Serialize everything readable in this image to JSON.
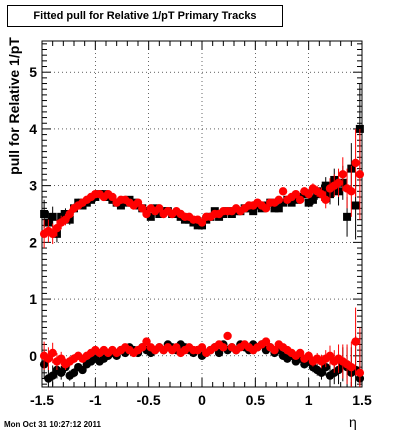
{
  "chart_data": {
    "type": "scatter",
    "title": "Fitted pull for Relative 1/pT  Primary Tracks",
    "ylabel": "pull for Relative 1/pT",
    "xlabel": "η",
    "xlim": [
      -1.5,
      1.5
    ],
    "ylim": [
      -0.55,
      5.55
    ],
    "x_ticks": [
      "-1.5",
      "-1",
      "-0.5",
      "0",
      "0.5",
      "1",
      "1.5"
    ],
    "y_ticks": [
      "0",
      "1",
      "2",
      "3",
      "4",
      "5"
    ],
    "x_tick_values": [
      -1.5,
      -1,
      -0.5,
      0,
      0.5,
      1,
      1.5
    ],
    "y_tick_values": [
      0,
      1,
      2,
      3,
      4,
      5
    ],
    "grid": true,
    "footer": "Mon Oct 31 10:27:12 2011",
    "series": [
      {
        "marker": "square",
        "color": "#000000",
        "x": [
          -1.48,
          -1.44,
          -1.4,
          -1.36,
          -1.32,
          -1.28,
          -1.24,
          -1.2,
          -1.16,
          -1.12,
          -1.08,
          -1.04,
          -1.0,
          -0.96,
          -0.92,
          -0.88,
          -0.84,
          -0.8,
          -0.76,
          -0.72,
          -0.68,
          -0.64,
          -0.6,
          -0.56,
          -0.52,
          -0.48,
          -0.44,
          -0.4,
          -0.36,
          -0.32,
          -0.28,
          -0.24,
          -0.2,
          -0.16,
          -0.12,
          -0.08,
          -0.04,
          0.0,
          0.04,
          0.08,
          0.12,
          0.16,
          0.2,
          0.24,
          0.28,
          0.32,
          0.36,
          0.4,
          0.44,
          0.48,
          0.52,
          0.56,
          0.6,
          0.64,
          0.68,
          0.72,
          0.76,
          0.8,
          0.84,
          0.88,
          0.92,
          0.96,
          1.0,
          1.04,
          1.08,
          1.12,
          1.16,
          1.2,
          1.24,
          1.28,
          1.32,
          1.36,
          1.4,
          1.44,
          1.48
        ],
        "y": [
          2.5,
          2.35,
          2.45,
          2.15,
          2.45,
          2.5,
          2.4,
          2.6,
          2.7,
          2.65,
          2.7,
          2.75,
          2.8,
          2.85,
          2.85,
          2.8,
          2.75,
          2.7,
          2.65,
          2.7,
          2.75,
          2.7,
          2.65,
          2.6,
          2.55,
          2.45,
          2.6,
          2.5,
          2.55,
          2.55,
          2.5,
          2.5,
          2.45,
          2.4,
          2.4,
          2.35,
          2.3,
          2.3,
          2.4,
          2.45,
          2.55,
          2.45,
          2.5,
          2.55,
          2.5,
          2.55,
          2.55,
          2.6,
          2.6,
          2.55,
          2.65,
          2.6,
          2.65,
          2.7,
          2.6,
          2.6,
          2.7,
          2.75,
          2.7,
          2.75,
          2.8,
          2.85,
          2.7,
          2.75,
          2.85,
          2.9,
          3.0,
          2.85,
          3.1,
          2.9,
          3.05,
          2.45,
          3.3,
          2.65,
          4.0
        ],
        "err": [
          0.25,
          0.2,
          0.18,
          0.15,
          0.12,
          0.1,
          0.09,
          0.08,
          0.07,
          0.07,
          0.06,
          0.06,
          0.06,
          0.05,
          0.05,
          0.05,
          0.05,
          0.05,
          0.05,
          0.05,
          0.05,
          0.05,
          0.05,
          0.05,
          0.05,
          0.05,
          0.05,
          0.05,
          0.05,
          0.05,
          0.05,
          0.05,
          0.05,
          0.05,
          0.05,
          0.05,
          0.05,
          0.05,
          0.05,
          0.05,
          0.05,
          0.05,
          0.05,
          0.05,
          0.05,
          0.05,
          0.05,
          0.05,
          0.05,
          0.05,
          0.05,
          0.05,
          0.05,
          0.05,
          0.05,
          0.05,
          0.06,
          0.06,
          0.06,
          0.06,
          0.07,
          0.07,
          0.08,
          0.09,
          0.1,
          0.12,
          0.15,
          0.18,
          0.2,
          0.25,
          0.3,
          0.35,
          0.45,
          0.6,
          0.8
        ]
      },
      {
        "marker": "circle",
        "color": "#ff0000",
        "x": [
          -1.48,
          -1.44,
          -1.4,
          -1.36,
          -1.32,
          -1.28,
          -1.24,
          -1.2,
          -1.16,
          -1.12,
          -1.08,
          -1.04,
          -1.0,
          -0.96,
          -0.92,
          -0.88,
          -0.84,
          -0.8,
          -0.76,
          -0.72,
          -0.68,
          -0.64,
          -0.6,
          -0.56,
          -0.52,
          -0.48,
          -0.44,
          -0.4,
          -0.36,
          -0.32,
          -0.28,
          -0.24,
          -0.2,
          -0.16,
          -0.12,
          -0.08,
          -0.04,
          0.0,
          0.04,
          0.08,
          0.12,
          0.16,
          0.2,
          0.24,
          0.28,
          0.32,
          0.36,
          0.4,
          0.44,
          0.48,
          0.52,
          0.56,
          0.6,
          0.64,
          0.68,
          0.72,
          0.76,
          0.8,
          0.84,
          0.88,
          0.92,
          0.96,
          1.0,
          1.04,
          1.08,
          1.12,
          1.16,
          1.2,
          1.24,
          1.28,
          1.32,
          1.36,
          1.4,
          1.44,
          1.48
        ],
        "y": [
          2.15,
          2.2,
          2.15,
          2.25,
          2.35,
          2.4,
          2.5,
          2.6,
          2.65,
          2.7,
          2.75,
          2.8,
          2.85,
          2.85,
          2.8,
          2.85,
          2.8,
          2.7,
          2.75,
          2.75,
          2.7,
          2.65,
          2.7,
          2.6,
          2.5,
          2.6,
          2.55,
          2.6,
          2.5,
          2.55,
          2.5,
          2.55,
          2.5,
          2.45,
          2.45,
          2.4,
          2.4,
          2.35,
          2.45,
          2.45,
          2.5,
          2.5,
          2.55,
          2.55,
          2.55,
          2.6,
          2.55,
          2.6,
          2.65,
          2.65,
          2.7,
          2.65,
          2.6,
          2.7,
          2.7,
          2.75,
          2.9,
          2.75,
          2.8,
          2.85,
          2.75,
          2.9,
          2.85,
          2.95,
          2.9,
          2.85,
          2.75,
          2.95,
          3.0,
          3.05,
          3.2,
          2.95,
          2.9,
          3.4,
          3.2
        ],
        "err": [
          0.25,
          0.2,
          0.18,
          0.15,
          0.12,
          0.1,
          0.09,
          0.08,
          0.07,
          0.07,
          0.06,
          0.06,
          0.06,
          0.05,
          0.05,
          0.05,
          0.05,
          0.05,
          0.05,
          0.05,
          0.05,
          0.05,
          0.05,
          0.05,
          0.05,
          0.05,
          0.05,
          0.05,
          0.05,
          0.05,
          0.05,
          0.05,
          0.05,
          0.05,
          0.05,
          0.05,
          0.05,
          0.05,
          0.05,
          0.05,
          0.05,
          0.05,
          0.05,
          0.05,
          0.05,
          0.05,
          0.05,
          0.05,
          0.05,
          0.05,
          0.05,
          0.05,
          0.05,
          0.05,
          0.05,
          0.05,
          0.06,
          0.06,
          0.06,
          0.06,
          0.07,
          0.07,
          0.08,
          0.09,
          0.1,
          0.12,
          0.15,
          0.18,
          0.2,
          0.25,
          0.3,
          0.35,
          0.45,
          0.6,
          0.8
        ]
      },
      {
        "marker": "circle",
        "color": "#000000",
        "x": [
          -1.48,
          -1.44,
          -1.4,
          -1.36,
          -1.32,
          -1.28,
          -1.24,
          -1.2,
          -1.16,
          -1.12,
          -1.08,
          -1.04,
          -1.0,
          -0.96,
          -0.92,
          -0.88,
          -0.84,
          -0.8,
          -0.76,
          -0.72,
          -0.68,
          -0.64,
          -0.6,
          -0.56,
          -0.52,
          -0.48,
          -0.44,
          -0.4,
          -0.36,
          -0.32,
          -0.28,
          -0.24,
          -0.2,
          -0.16,
          -0.12,
          -0.08,
          -0.04,
          0.0,
          0.04,
          0.08,
          0.12,
          0.16,
          0.2,
          0.24,
          0.28,
          0.32,
          0.36,
          0.4,
          0.44,
          0.48,
          0.52,
          0.56,
          0.6,
          0.64,
          0.68,
          0.72,
          0.76,
          0.8,
          0.84,
          0.88,
          0.92,
          0.96,
          1.0,
          1.04,
          1.08,
          1.12,
          1.16,
          1.2,
          1.24,
          1.28,
          1.32,
          1.36,
          1.4,
          1.44,
          1.48
        ],
        "y": [
          -0.15,
          -0.4,
          -0.35,
          -0.25,
          -0.3,
          -0.2,
          -0.35,
          -0.3,
          -0.2,
          -0.25,
          -0.15,
          -0.1,
          -0.05,
          -0.1,
          -0.05,
          0.0,
          0.05,
          0.0,
          0.1,
          0.05,
          0.15,
          0.1,
          0.05,
          0.15,
          0.1,
          0.05,
          0.1,
          0.15,
          0.1,
          0.2,
          0.15,
          0.1,
          0.2,
          0.15,
          0.1,
          0.05,
          0.1,
          0.0,
          0.05,
          0.1,
          0.15,
          0.05,
          0.2,
          0.1,
          0.15,
          0.1,
          0.2,
          0.15,
          0.1,
          0.2,
          0.15,
          0.2,
          0.1,
          0.15,
          0.05,
          0.1,
          0.0,
          -0.05,
          0.0,
          -0.1,
          -0.05,
          -0.15,
          -0.1,
          -0.2,
          -0.25,
          -0.3,
          -0.2,
          -0.35,
          -0.3,
          -0.25,
          -0.15,
          -0.2,
          -0.3,
          -0.25,
          -0.4
        ],
        "err": [
          0.25,
          0.2,
          0.18,
          0.15,
          0.12,
          0.1,
          0.09,
          0.08,
          0.07,
          0.07,
          0.06,
          0.06,
          0.06,
          0.05,
          0.05,
          0.05,
          0.05,
          0.05,
          0.05,
          0.05,
          0.05,
          0.05,
          0.05,
          0.05,
          0.05,
          0.05,
          0.05,
          0.05,
          0.05,
          0.05,
          0.05,
          0.05,
          0.05,
          0.05,
          0.05,
          0.05,
          0.05,
          0.05,
          0.05,
          0.05,
          0.05,
          0.05,
          0.05,
          0.05,
          0.05,
          0.05,
          0.05,
          0.05,
          0.05,
          0.05,
          0.05,
          0.05,
          0.05,
          0.05,
          0.05,
          0.05,
          0.06,
          0.06,
          0.06,
          0.06,
          0.07,
          0.07,
          0.08,
          0.09,
          0.1,
          0.12,
          0.15,
          0.18,
          0.2,
          0.25,
          0.3,
          0.35,
          0.45,
          0.6,
          0.8
        ]
      },
      {
        "marker": "circle",
        "color": "#ff0000",
        "x": [
          -1.48,
          -1.44,
          -1.4,
          -1.36,
          -1.32,
          -1.28,
          -1.24,
          -1.2,
          -1.16,
          -1.12,
          -1.08,
          -1.04,
          -1.0,
          -0.96,
          -0.92,
          -0.88,
          -0.84,
          -0.8,
          -0.76,
          -0.72,
          -0.68,
          -0.64,
          -0.6,
          -0.56,
          -0.52,
          -0.48,
          -0.44,
          -0.4,
          -0.36,
          -0.32,
          -0.28,
          -0.24,
          -0.2,
          -0.16,
          -0.12,
          -0.08,
          -0.04,
          0.0,
          0.04,
          0.08,
          0.12,
          0.16,
          0.2,
          0.24,
          0.28,
          0.32,
          0.36,
          0.4,
          0.44,
          0.48,
          0.52,
          0.56,
          0.6,
          0.64,
          0.68,
          0.72,
          0.76,
          0.8,
          0.84,
          0.88,
          0.92,
          0.96,
          1.0,
          1.04,
          1.08,
          1.12,
          1.16,
          1.2,
          1.24,
          1.28,
          1.32,
          1.36,
          1.4,
          1.44,
          1.48
        ],
        "y": [
          0.0,
          -0.05,
          0.05,
          -0.1,
          -0.05,
          -0.15,
          -0.1,
          -0.05,
          0.0,
          -0.05,
          0.0,
          0.05,
          0.1,
          0.05,
          0.1,
          0.05,
          0.1,
          0.05,
          0.1,
          0.15,
          0.1,
          0.05,
          0.1,
          0.15,
          0.25,
          0.15,
          0.1,
          0.15,
          0.1,
          0.15,
          0.1,
          0.15,
          0.05,
          0.1,
          0.15,
          0.1,
          0.1,
          0.15,
          0.05,
          0.1,
          0.15,
          0.2,
          0.15,
          0.35,
          0.15,
          0.1,
          0.15,
          0.2,
          0.15,
          0.1,
          0.15,
          0.2,
          0.25,
          0.15,
          0.1,
          0.2,
          0.15,
          0.1,
          0.05,
          0.0,
          0.05,
          -0.05,
          0.0,
          -0.1,
          -0.05,
          -0.1,
          -0.05,
          0.0,
          -0.1,
          -0.05,
          -0.1,
          -0.15,
          -0.2,
          0.25,
          -0.3
        ],
        "err": [
          0.25,
          0.2,
          0.18,
          0.15,
          0.12,
          0.1,
          0.09,
          0.08,
          0.07,
          0.07,
          0.06,
          0.06,
          0.06,
          0.05,
          0.05,
          0.05,
          0.05,
          0.05,
          0.05,
          0.05,
          0.05,
          0.05,
          0.05,
          0.05,
          0.05,
          0.05,
          0.05,
          0.05,
          0.05,
          0.05,
          0.05,
          0.05,
          0.05,
          0.05,
          0.05,
          0.05,
          0.05,
          0.05,
          0.05,
          0.05,
          0.05,
          0.05,
          0.05,
          0.05,
          0.05,
          0.05,
          0.05,
          0.05,
          0.05,
          0.05,
          0.05,
          0.05,
          0.05,
          0.05,
          0.05,
          0.05,
          0.06,
          0.06,
          0.06,
          0.06,
          0.07,
          0.07,
          0.08,
          0.09,
          0.1,
          0.12,
          0.15,
          0.18,
          0.2,
          0.25,
          0.3,
          0.35,
          0.45,
          0.6,
          0.8
        ]
      }
    ]
  }
}
